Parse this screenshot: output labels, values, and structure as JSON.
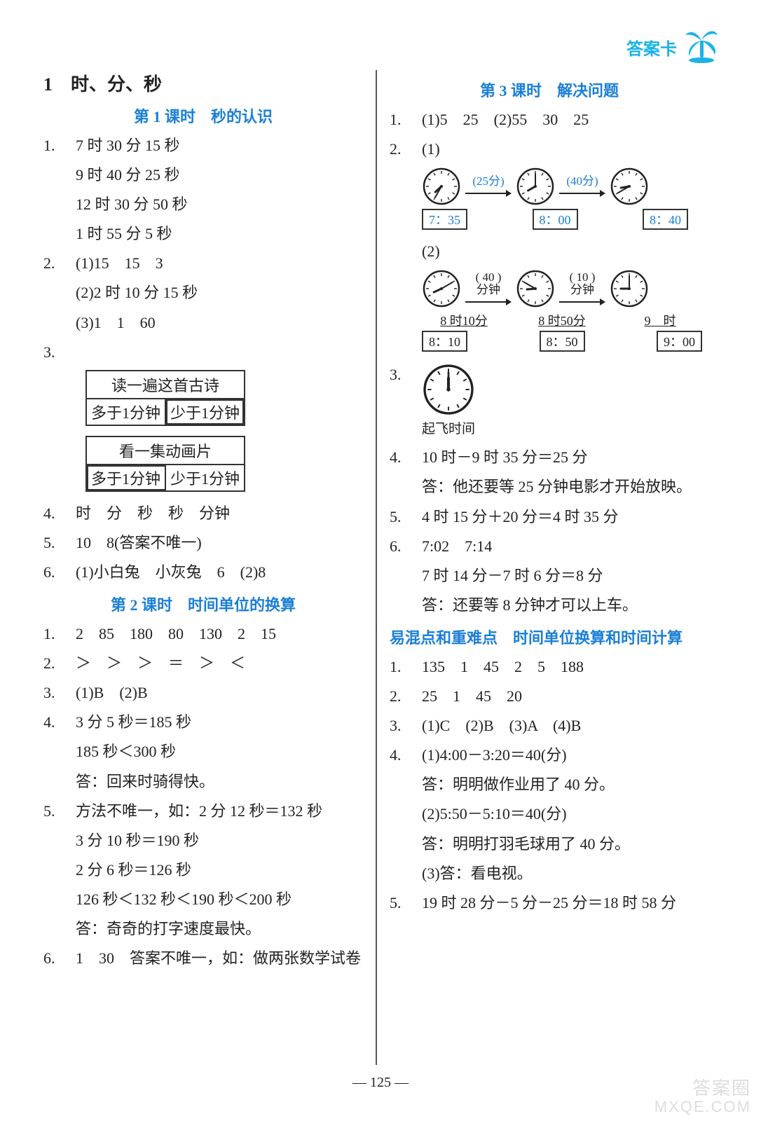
{
  "header": {
    "label": "答案卡"
  },
  "palm_icon": {
    "color": "#1ab3e6"
  },
  "page_number": "— 125 —",
  "watermark": {
    "line1": "答案圈",
    "line2": "MXQE.COM"
  },
  "colors": {
    "accent": "#1a7fd6",
    "header": "#1ab3e6",
    "text": "#222222",
    "box_border": "#333333"
  },
  "left": {
    "chapter": "1　时、分、秒",
    "sec1_title": "第 1 课时　秒的认识",
    "s1q1a": "7 时 30 分 15 秒",
    "s1q1b": "9 时 40 分 25 秒",
    "s1q1c": "12 时 30 分 50 秒",
    "s1q1d": "1 时 55 分 5 秒",
    "s1q2a": "(1)15　15　3",
    "s1q2b": "(2)2 时 10 分 15 秒",
    "s1q2c": "(3)1　1　60",
    "s1q3_box1_top": "读一遍这首古诗",
    "s1q3_box1_l": "多于1分钟",
    "s1q3_box1_r": "少于1分钟",
    "s1q3_box2_top": "看一集动画片",
    "s1q3_box2_l": "多于1分钟",
    "s1q3_box2_r": "少于1分钟",
    "s1q4": "时　分　秒　秒　分钟",
    "s1q5": "10　8(答案不唯一)",
    "s1q6": "(1)小白兔　小灰兔　6　(2)8",
    "sec2_title": "第 2 课时　时间单位的换算",
    "s2q1": "2　85　180　80　130　2　15",
    "s2q2": "＞　＞　＞　＝　＞　＜",
    "s2q3": "(1)B　(2)B",
    "s2q4a": "3 分 5 秒＝185 秒",
    "s2q4b": "185 秒＜300 秒",
    "s2q4c": "答：回来时骑得快。",
    "s2q5a": "方法不唯一，如：2 分 12 秒＝132 秒",
    "s2q5b": "3 分 10 秒＝190 秒",
    "s2q5c": "2 分 6 秒＝126 秒",
    "s2q5d": "126 秒＜132 秒＜190 秒＜200 秒",
    "s2q5e": "答：奇奇的打字速度最快。",
    "s2q6": "1　30　答案不唯一，如：做两张数学试卷"
  },
  "right": {
    "sec3_title": "第 3 课时　解决问题",
    "s3q1": "(1)5　25　(2)55　30　25",
    "s3q2p1_arrow1": "(25分)",
    "s3q2p1_arrow2": "(40分)",
    "s3q2p1_t1": "7：35",
    "s3q2p1_t2": "8：00",
    "s3q2p1_t3": "8：40",
    "s3q2p1_clock_hm": [
      [
        7,
        35
      ],
      [
        8,
        0
      ],
      [
        8,
        40
      ]
    ],
    "s3q2p2_a1top": "( 40 )",
    "s3q2p2_a1bot": "分钟",
    "s3q2p2_a2top": "( 10 )",
    "s3q2p2_a2bot": "分钟",
    "s3q2p2_clock_hm": [
      [
        8,
        10
      ],
      [
        8,
        50
      ],
      [
        9,
        0
      ]
    ],
    "s3q2p2_lab1": "8 时10分",
    "s3q2p2_lab2": "8 时50分",
    "s3q2p2_lab3": "9　时",
    "s3q2p2_t1": "8：10",
    "s3q2p2_t2": "8：50",
    "s3q2p2_t3": "9：00",
    "s3q3_label": "起飞时间",
    "s3q3_clock_hm": [
      12,
      0
    ],
    "s3q4a": "10 时－9 时 35 分＝25 分",
    "s3q4b": "答：他还要等 25 分钟电影才开始放映。",
    "s3q5": "4 时 15 分＋20 分＝4 时 35 分",
    "s3q6a": "7:02　7:14",
    "s3q6b": "7 时 14 分－7 时 6 分＝8 分",
    "s3q6c": "答：还要等 8 分钟才可以上车。",
    "mix_title": "易混点和重难点　时间单位换算和时间计算",
    "mq1": "135　1　45　2　5　188",
    "mq2": "25　1　45　20",
    "mq3": "(1)C　(2)B　(3)A　(4)B",
    "mq4a": "(1)4:00－3:20＝40(分)",
    "mq4b": "答：明明做作业用了 40 分。",
    "mq4c": "(2)5:50－5:10＝40(分)",
    "mq4d": "答：明明打羽毛球用了 40 分。",
    "mq4e": "(3)答：看电视。",
    "mq5": "19 时 28 分－5 分－25 分＝18 时 58 分"
  }
}
